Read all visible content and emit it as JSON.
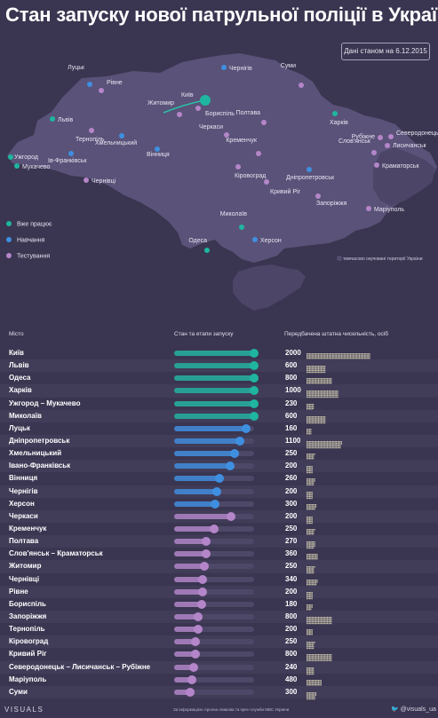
{
  "title": "Стан запуску нової патрульної поліції в Україні",
  "date_badge": "Дані станом на 6.12.2015",
  "legend": [
    {
      "label": "Вже працює",
      "color": "#1fb5a0"
    },
    {
      "label": "Навчання",
      "color": "#3f8fe0"
    },
    {
      "label": "Тестування",
      "color": "#b486c9"
    }
  ],
  "occupied_note": "тимчасово окуповані території України",
  "map_cities": [
    {
      "name": "Київ",
      "status": 0
    },
    {
      "name": "Бориспіль",
      "status": 2
    },
    {
      "name": "Житомир",
      "status": 2
    },
    {
      "name": "Чернігів",
      "status": 1
    },
    {
      "name": "Суми",
      "status": 2
    },
    {
      "name": "Луцьк",
      "status": 1
    },
    {
      "name": "Рівне",
      "status": 2
    },
    {
      "name": "Львів",
      "status": 0
    },
    {
      "name": "Тернопіль",
      "status": 2
    },
    {
      "name": "Хмельницький",
      "status": 1
    },
    {
      "name": "Вінниця",
      "status": 1
    },
    {
      "name": "Ів-Франківськ",
      "status": 1
    },
    {
      "name": "Ужгород",
      "status": 0
    },
    {
      "name": "Мукачево",
      "status": 0
    },
    {
      "name": "Чернівці",
      "status": 2
    },
    {
      "name": "Полтава",
      "status": 2
    },
    {
      "name": "Харків",
      "status": 0
    },
    {
      "name": "Черкаси",
      "status": 2
    },
    {
      "name": "Кременчук",
      "status": 2
    },
    {
      "name": "Кіровоград",
      "status": 2
    },
    {
      "name": "Дніпропетровськ",
      "status": 1
    },
    {
      "name": "Кривий Ріг",
      "status": 2
    },
    {
      "name": "Запоріжжя",
      "status": 2
    },
    {
      "name": "Рубіжне",
      "status": 2
    },
    {
      "name": "Северодонецьк",
      "status": 2
    },
    {
      "name": "Лисичанськ",
      "status": 2
    },
    {
      "name": "Слов'янськ",
      "status": 2
    },
    {
      "name": "Краматорськ",
      "status": 2
    },
    {
      "name": "Маріуполь",
      "status": 2
    },
    {
      "name": "Миколаїв",
      "status": 0
    },
    {
      "name": "Одеса",
      "status": 0
    },
    {
      "name": "Херсон",
      "status": 1
    }
  ],
  "table_headers": {
    "city": "Місто",
    "stage": "Стан та етапи запуску",
    "count": "Передбачена штатна чисельність, осіб"
  },
  "chart_data": {
    "type": "table",
    "columns": [
      "Місто",
      "Стан та етапи запуску",
      "Передбачена штатна чисельність, осіб"
    ],
    "stage_scale": [
      0,
      1
    ],
    "rows": [
      {
        "city": "Київ",
        "status": 0,
        "progress": 1.0,
        "count": 2000
      },
      {
        "city": "Львів",
        "status": 0,
        "progress": 1.0,
        "count": 600
      },
      {
        "city": "Одеса",
        "status": 0,
        "progress": 1.0,
        "count": 800
      },
      {
        "city": "Харків",
        "status": 0,
        "progress": 1.0,
        "count": 1000
      },
      {
        "city": "Ужгород – Мукачево",
        "status": 0,
        "progress": 1.0,
        "count": 230
      },
      {
        "city": "Миколаїв",
        "status": 0,
        "progress": 1.0,
        "count": 600
      },
      {
        "city": "Луцьк",
        "status": 1,
        "progress": 0.9,
        "count": 160
      },
      {
        "city": "Дніпропетровськ",
        "status": 1,
        "progress": 0.82,
        "count": 1100
      },
      {
        "city": "Хмельницький",
        "status": 1,
        "progress": 0.75,
        "count": 250
      },
      {
        "city": "Івано-Франківськ",
        "status": 1,
        "progress": 0.7,
        "count": 200
      },
      {
        "city": "Вінниця",
        "status": 1,
        "progress": 0.57,
        "count": 260
      },
      {
        "city": "Чернігів",
        "status": 1,
        "progress": 0.53,
        "count": 200
      },
      {
        "city": "Херсон",
        "status": 1,
        "progress": 0.51,
        "count": 300
      },
      {
        "city": "Черкаси",
        "status": 2,
        "progress": 0.71,
        "count": 200
      },
      {
        "city": "Кременчук",
        "status": 2,
        "progress": 0.5,
        "count": 250
      },
      {
        "city": "Полтава",
        "status": 2,
        "progress": 0.4,
        "count": 270
      },
      {
        "city": "Слов'янськ – Краматорськ",
        "status": 2,
        "progress": 0.4,
        "count": 360
      },
      {
        "city": "Житомир",
        "status": 2,
        "progress": 0.38,
        "count": 250
      },
      {
        "city": "Чернівці",
        "status": 2,
        "progress": 0.36,
        "count": 340
      },
      {
        "city": "Рівне",
        "status": 2,
        "progress": 0.36,
        "count": 200
      },
      {
        "city": "Бориспіль",
        "status": 2,
        "progress": 0.34,
        "count": 180
      },
      {
        "city": "Запоріжжя",
        "status": 2,
        "progress": 0.3,
        "count": 800
      },
      {
        "city": "Тернопіль",
        "status": 2,
        "progress": 0.3,
        "count": 200
      },
      {
        "city": "Кіровоград",
        "status": 2,
        "progress": 0.27,
        "count": 250
      },
      {
        "city": "Кривий Ріг",
        "status": 2,
        "progress": 0.27,
        "count": 800
      },
      {
        "city": "Северодонецьк – Лисичанськ – Рубіжне",
        "status": 2,
        "progress": 0.24,
        "count": 240
      },
      {
        "city": "Маріуполь",
        "status": 2,
        "progress": 0.22,
        "count": 480
      },
      {
        "city": "Суми",
        "status": 2,
        "progress": 0.2,
        "count": 300
      }
    ]
  },
  "footer_source": "За інформацією Арсена Авакова та прес-служби МВС України",
  "brand": "VISUALS",
  "twitter_handle": "@visuals_ua",
  "twitter_icon": "bird-icon"
}
